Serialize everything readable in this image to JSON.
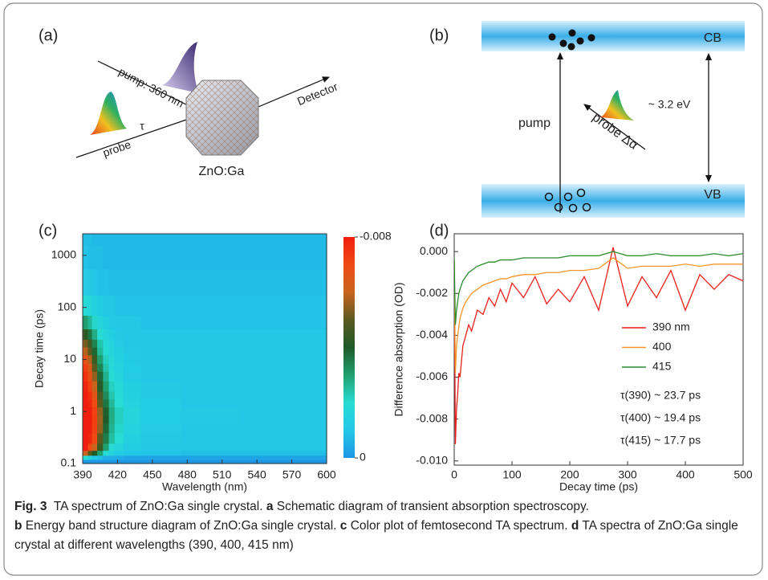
{
  "panels": {
    "a": {
      "label": "(a)",
      "pump": "pump: 360 nm",
      "probe": "probe",
      "tau": "τ",
      "detector": "Detector",
      "sample": "ZnO:Ga"
    },
    "b": {
      "label": "(b)",
      "cb": "CB",
      "vb": "VB",
      "pump": "pump",
      "probe": "probe Δα",
      "gap": "~ 3.2 eV"
    }
  },
  "chart_data": [
    {
      "type": "heatmap",
      "label": "(c)",
      "xlabel": "Wavelength (nm)",
      "ylabel": "Decay time (ps)",
      "x": [
        390,
        393,
        396,
        400,
        405,
        410,
        415,
        420,
        430,
        450,
        500,
        550,
        600
      ],
      "y": [
        0.11,
        0.13,
        0.16,
        0.2,
        0.3,
        0.5,
        0.7,
        1,
        1.5,
        2,
        3,
        5,
        7,
        10,
        15,
        20,
        30,
        50,
        100,
        300,
        1000,
        2500
      ],
      "z": [
        [
          0,
          0,
          0,
          0,
          0,
          0,
          0,
          0,
          0,
          0,
          0,
          0,
          0
        ],
        [
          -0.002,
          -0.002,
          -0.0015,
          -0.001,
          -0.0008,
          -0.0005,
          -0.0005,
          -0.0004,
          -0.0003,
          -0.0003,
          -0.0003,
          -0.0003,
          -0.0003
        ],
        [
          -0.006,
          -0.006,
          -0.005,
          -0.004,
          -0.003,
          -0.002,
          -0.0015,
          -0.0012,
          -0.001,
          -0.0009,
          -0.0008,
          -0.0008,
          -0.0008
        ],
        [
          -0.008,
          -0.008,
          -0.007,
          -0.006,
          -0.0045,
          -0.003,
          -0.002,
          -0.0016,
          -0.0012,
          -0.001,
          -0.001,
          -0.001,
          -0.001
        ],
        [
          -0.008,
          -0.008,
          -0.0078,
          -0.007,
          -0.005,
          -0.0035,
          -0.0025,
          -0.002,
          -0.0014,
          -0.0011,
          -0.001,
          -0.001,
          -0.001
        ],
        [
          -0.008,
          -0.008,
          -0.008,
          -0.0072,
          -0.0055,
          -0.0038,
          -0.0027,
          -0.0021,
          -0.0015,
          -0.0012,
          -0.001,
          -0.001,
          -0.001
        ],
        [
          -0.008,
          -0.008,
          -0.008,
          -0.0073,
          -0.0056,
          -0.004,
          -0.0028,
          -0.0022,
          -0.0016,
          -0.0012,
          -0.0011,
          -0.001,
          -0.001
        ],
        [
          -0.008,
          -0.008,
          -0.008,
          -0.0072,
          -0.0055,
          -0.0039,
          -0.0028,
          -0.0022,
          -0.0016,
          -0.0012,
          -0.0011,
          -0.001,
          -0.001
        ],
        [
          -0.008,
          -0.008,
          -0.0078,
          -0.007,
          -0.005,
          -0.0036,
          -0.0026,
          -0.002,
          -0.0015,
          -0.0012,
          -0.001,
          -0.001,
          -0.001
        ],
        [
          -0.008,
          -0.008,
          -0.0076,
          -0.0066,
          -0.0047,
          -0.0033,
          -0.0024,
          -0.0019,
          -0.0014,
          -0.0011,
          -0.001,
          -0.001,
          -0.001
        ],
        [
          -0.008,
          -0.0078,
          -0.0072,
          -0.006,
          -0.0042,
          -0.003,
          -0.0022,
          -0.0018,
          -0.0013,
          -0.0011,
          -0.001,
          -0.001,
          -0.001
        ],
        [
          -0.0078,
          -0.0075,
          -0.0068,
          -0.0055,
          -0.0038,
          -0.0027,
          -0.002,
          -0.0016,
          -0.0012,
          -0.001,
          -0.001,
          -0.001,
          -0.001
        ],
        [
          -0.0075,
          -0.0072,
          -0.0064,
          -0.005,
          -0.0034,
          -0.0024,
          -0.0018,
          -0.0015,
          -0.0012,
          -0.001,
          -0.001,
          -0.001,
          -0.001
        ],
        [
          -0.007,
          -0.0066,
          -0.0058,
          -0.0045,
          -0.003,
          -0.0022,
          -0.0017,
          -0.0014,
          -0.0011,
          -0.001,
          -0.001,
          -0.001,
          -0.001
        ],
        [
          -0.0062,
          -0.0058,
          -0.005,
          -0.0038,
          -0.0026,
          -0.002,
          -0.0016,
          -0.0013,
          -0.0011,
          -0.001,
          -0.001,
          -0.001,
          -0.001
        ],
        [
          -0.0055,
          -0.0052,
          -0.0045,
          -0.0034,
          -0.0024,
          -0.0018,
          -0.0015,
          -0.0012,
          -0.001,
          -0.001,
          -0.001,
          -0.001,
          -0.001
        ],
        [
          -0.0045,
          -0.0042,
          -0.0036,
          -0.0028,
          -0.002,
          -0.0016,
          -0.0013,
          -0.0011,
          -0.001,
          -0.001,
          -0.001,
          -0.001,
          -0.001
        ],
        [
          -0.0032,
          -0.003,
          -0.0026,
          -0.0021,
          -0.0016,
          -0.0013,
          -0.0011,
          -0.001,
          -0.001,
          -0.0009,
          -0.0009,
          -0.0009,
          -0.0009
        ],
        [
          -0.002,
          -0.0019,
          -0.0017,
          -0.0014,
          -0.0012,
          -0.001,
          -0.001,
          -0.0009,
          -0.0009,
          -0.0009,
          -0.0009,
          -0.0009,
          -0.0009
        ],
        [
          -0.0012,
          -0.0012,
          -0.0011,
          -0.001,
          -0.0009,
          -0.0009,
          -0.0008,
          -0.0008,
          -0.0008,
          -0.0008,
          -0.0008,
          -0.0008,
          -0.0008
        ],
        [
          -0.0009,
          -0.0009,
          -0.0008,
          -0.0008,
          -0.0008,
          -0.0007,
          -0.0007,
          -0.0007,
          -0.0007,
          -0.0007,
          -0.0007,
          -0.0007,
          -0.0007
        ],
        [
          -0.0008,
          -0.0008,
          -0.0008,
          -0.0007,
          -0.0007,
          -0.0007,
          -0.0007,
          -0.0007,
          -0.0007,
          -0.0007,
          -0.0007,
          -0.0007,
          -0.0007
        ]
      ],
      "xlim": [
        390,
        600
      ],
      "xticks": [
        390,
        420,
        450,
        480,
        510,
        540,
        570,
        600
      ],
      "ylim": [
        0.1,
        2600
      ],
      "yticks": [
        0.1,
        1,
        10,
        100,
        1000
      ],
      "ylog": true,
      "clim": [
        0,
        -0.008
      ],
      "cticks": [
        -0.008,
        0
      ],
      "colormap": [
        {
          "value": 0,
          "color": "#1e96e6"
        },
        {
          "value": -0.001,
          "color": "#22c8e6"
        },
        {
          "value": -0.002,
          "color": "#28dcd4"
        },
        {
          "value": -0.003,
          "color": "#20a070"
        },
        {
          "value": -0.004,
          "color": "#1e5a28"
        },
        {
          "value": -0.005,
          "color": "#5a5a20"
        },
        {
          "value": -0.006,
          "color": "#c8641e"
        },
        {
          "value": -0.007,
          "color": "#f04a14"
        },
        {
          "value": -0.008,
          "color": "#f01e0e"
        }
      ]
    },
    {
      "type": "line",
      "label": "(d)",
      "xlabel": "Decay time (ps)",
      "ylabel": "Difference absorption (OD)",
      "x": [
        0,
        2,
        4,
        6,
        8,
        10,
        15,
        20,
        25,
        30,
        40,
        50,
        60,
        70,
        80,
        90,
        100,
        120,
        140,
        160,
        180,
        200,
        225,
        250,
        275,
        300,
        325,
        350,
        375,
        400,
        425,
        450,
        475,
        500
      ],
      "series": [
        {
          "name": "390 nm",
          "color": "#e8201c",
          "values": [
            -0.0005,
            -0.0092,
            -0.0075,
            -0.0068,
            -0.0058,
            -0.006,
            -0.0045,
            -0.004,
            -0.0035,
            -0.0038,
            -0.0028,
            -0.003,
            -0.0022,
            -0.0026,
            -0.0018,
            -0.0024,
            -0.0015,
            -0.0022,
            -0.0012,
            -0.0025,
            -0.0018,
            -0.0024,
            -0.0012,
            -0.0028,
            0.0002,
            -0.0026,
            -0.0012,
            -0.0022,
            -0.0009,
            -0.0028,
            -0.0011,
            -0.0018,
            -0.0011,
            -0.0014
          ]
        },
        {
          "name": "400",
          "color": "#f5952a",
          "values": [
            -0.0004,
            -0.0058,
            -0.0045,
            -0.004,
            -0.0036,
            -0.0032,
            -0.0027,
            -0.0024,
            -0.0022,
            -0.002,
            -0.0018,
            -0.0016,
            -0.0015,
            -0.0014,
            -0.0013,
            -0.0013,
            -0.0012,
            -0.0011,
            -0.0011,
            -0.001,
            -0.001,
            -0.0009,
            -0.0009,
            -0.0008,
            -0.0003,
            -0.0008,
            -0.0007,
            -0.0007,
            -0.0007,
            -0.0006,
            -0.0007,
            -0.0006,
            -0.0006,
            -0.0006
          ]
        },
        {
          "name": "415",
          "color": "#2a8a2a",
          "values": [
            -0.0003,
            -0.0035,
            -0.0028,
            -0.0024,
            -0.002,
            -0.0018,
            -0.0014,
            -0.0012,
            -0.001,
            -0.0009,
            -0.0007,
            -0.0006,
            -0.0005,
            -0.0005,
            -0.0004,
            -0.0004,
            -0.0004,
            -0.0003,
            -0.0003,
            -0.0003,
            -0.0003,
            -0.0002,
            -0.0002,
            -0.0002,
            0,
            -0.0002,
            -0.0002,
            -0.0001,
            -0.0002,
            -0.0002,
            -0.0002,
            -0.0001,
            -0.0002,
            -0.0001
          ]
        }
      ],
      "xlim": [
        0,
        500
      ],
      "xticks": [
        0,
        100,
        200,
        300,
        400,
        500
      ],
      "ylim": [
        -0.0102,
        0.00085
      ],
      "yticks": [
        {
          "value": -0.01,
          "label": "-0.010"
        },
        -0.008,
        -0.006,
        -0.004,
        -0.002,
        {
          "value": 0,
          "label": "0.000"
        }
      ],
      "annotations": [
        "τ(390) ~ 23.7 ps",
        "τ(400) ~ 19.4 ps",
        "τ(415) ~ 17.7 ps"
      ]
    }
  ],
  "caption": {
    "figure": "Fig. 3",
    "text": "TA spectrum of ZnO:Ga single crystal.",
    "parts": [
      {
        "letter": "a",
        "text": "Schematic diagram of transient absorption spectroscopy."
      },
      {
        "letter": "b",
        "text": "Energy band structure diagram of ZnO:Ga single crystal."
      },
      {
        "letter": "c",
        "text": "Color plot of femtosecond TA spectrum."
      },
      {
        "letter": "d",
        "text": "TA spectra of ZnO:Ga single crystal at different wavelengths (390, 400, 415 nm)"
      }
    ]
  }
}
